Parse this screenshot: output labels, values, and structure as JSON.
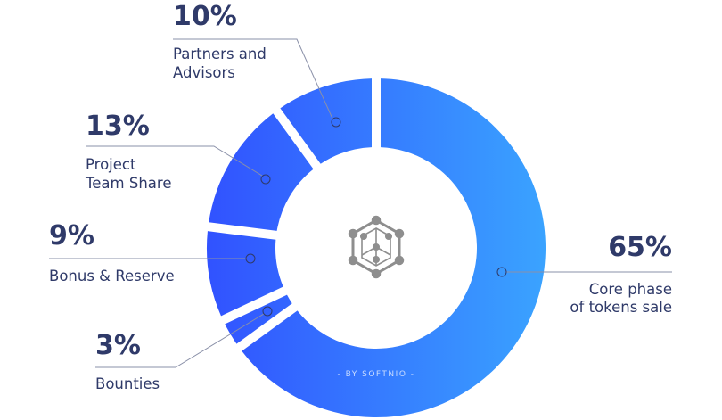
{
  "chart_data": {
    "type": "pie",
    "variant": "donut",
    "credit": "- BY SOFTNIO -",
    "colors": {
      "gradient_start": "#3152ff",
      "gradient_end": "#3aa3ff",
      "text": "#2f3a69",
      "icon": "#8e8e8e"
    },
    "center_icon": "hexagon-network-icon",
    "slices": [
      {
        "label": [
          "Core phase",
          "of tokens sale"
        ],
        "value": 65,
        "display": "65%"
      },
      {
        "label": [
          "Bounties"
        ],
        "value": 3,
        "display": "3%"
      },
      {
        "label": [
          "Bonus & Reserve"
        ],
        "value": 9,
        "display": "9%"
      },
      {
        "label": [
          "Project",
          "Team Share"
        ],
        "value": 13,
        "display": "13%"
      },
      {
        "label": [
          "Partners and",
          "Advisors"
        ],
        "value": 10,
        "display": "10%"
      }
    ]
  }
}
